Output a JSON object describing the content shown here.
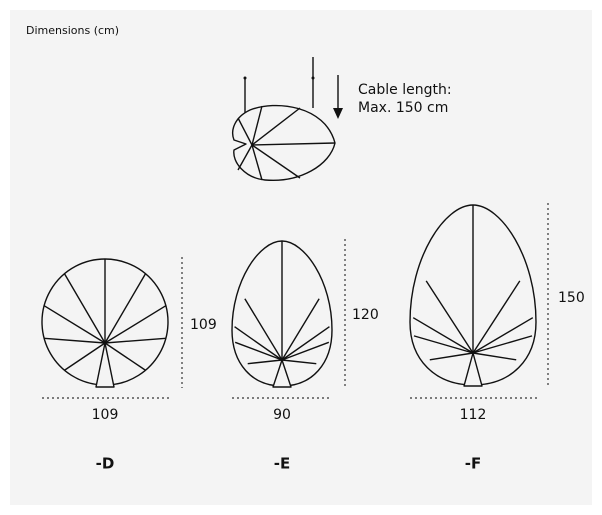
{
  "title": "Dimensions (cm)",
  "cable": {
    "line1": "Cable length:",
    "line2": "Max. 150 cm"
  },
  "variants": [
    {
      "label": "-D",
      "width": "109",
      "height": "109"
    },
    {
      "label": "-E",
      "width": "90",
      "height": "120"
    },
    {
      "label": "-F",
      "width": "112",
      "height": "150"
    }
  ]
}
